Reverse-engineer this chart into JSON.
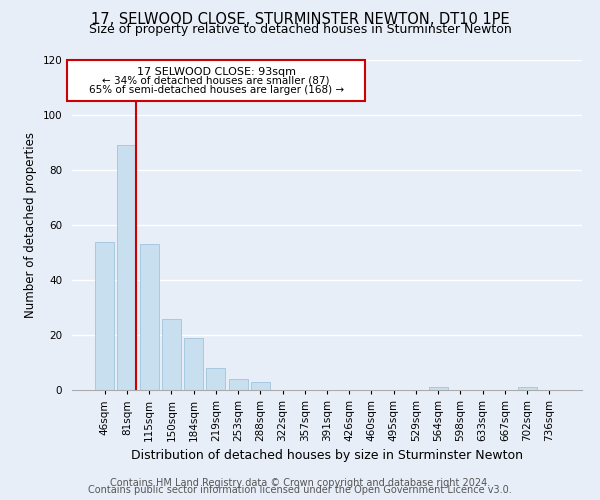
{
  "title": "17, SELWOOD CLOSE, STURMINSTER NEWTON, DT10 1PE",
  "subtitle": "Size of property relative to detached houses in Sturminster Newton",
  "bar_labels": [
    "46sqm",
    "81sqm",
    "115sqm",
    "150sqm",
    "184sqm",
    "219sqm",
    "253sqm",
    "288sqm",
    "322sqm",
    "357sqm",
    "391sqm",
    "426sqm",
    "460sqm",
    "495sqm",
    "529sqm",
    "564sqm",
    "598sqm",
    "633sqm",
    "667sqm",
    "702sqm",
    "736sqm"
  ],
  "bar_values": [
    54,
    89,
    53,
    26,
    19,
    8,
    4,
    3,
    0,
    0,
    0,
    0,
    0,
    0,
    0,
    1,
    0,
    0,
    0,
    1,
    0
  ],
  "bar_color": "#c8dff0",
  "bar_edge_color": "#a0c4dc",
  "ylabel": "Number of detached properties",
  "xlabel": "Distribution of detached houses by size in Sturminster Newton",
  "ylim": [
    0,
    120
  ],
  "yticks": [
    0,
    20,
    40,
    60,
    80,
    100,
    120
  ],
  "vline_color": "#cc0000",
  "annotation_title": "17 SELWOOD CLOSE: 93sqm",
  "annotation_line1": "← 34% of detached houses are smaller (87)",
  "annotation_line2": "65% of semi-detached houses are larger (168) →",
  "annotation_box_color": "#ffffff",
  "annotation_box_edge": "#cc0000",
  "footer_line1": "Contains HM Land Registry data © Crown copyright and database right 2024.",
  "footer_line2": "Contains public sector information licensed under the Open Government Licence v3.0.",
  "background_color": "#e8eef8",
  "grid_color": "#ffffff",
  "title_fontsize": 10.5,
  "subtitle_fontsize": 9,
  "xlabel_fontsize": 9,
  "ylabel_fontsize": 8.5,
  "tick_fontsize": 7.5,
  "footer_fontsize": 7
}
